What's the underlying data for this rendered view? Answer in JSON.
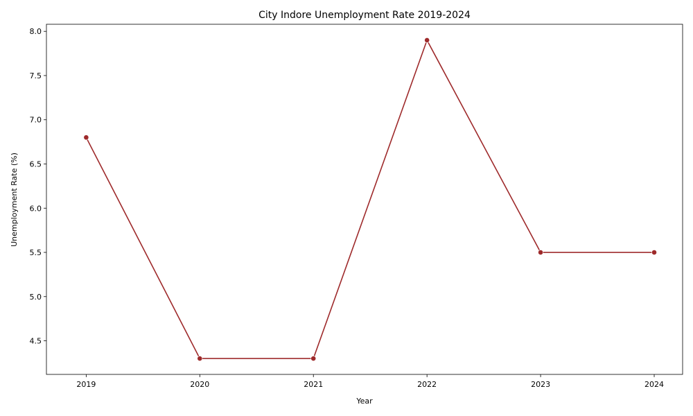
{
  "chart_data": {
    "type": "line",
    "title": "City Indore Unemployment Rate 2019-2024",
    "xlabel": "Year",
    "ylabel": "Unemployment Rate (%)",
    "x": [
      2019,
      2020,
      2021,
      2022,
      2023,
      2024
    ],
    "x_tick_labels": [
      "2019",
      "2020",
      "2021",
      "2022",
      "2023",
      "2024"
    ],
    "series": [
      {
        "values": [
          6.8,
          4.3,
          4.3,
          7.9,
          5.5,
          5.5
        ]
      }
    ],
    "xlim": [
      2018.65,
      2024.25
    ],
    "ylim": [
      4.12,
      8.08
    ],
    "y_ticks": [
      4.5,
      5.0,
      5.5,
      6.0,
      6.5,
      7.0,
      7.5,
      8.0
    ],
    "y_tick_labels": [
      "4.5",
      "5.0",
      "5.5",
      "6.0",
      "6.5",
      "7.0",
      "7.5",
      "8.0"
    ],
    "line_color": "#9e2a2b",
    "grid": false,
    "legend": "none"
  }
}
